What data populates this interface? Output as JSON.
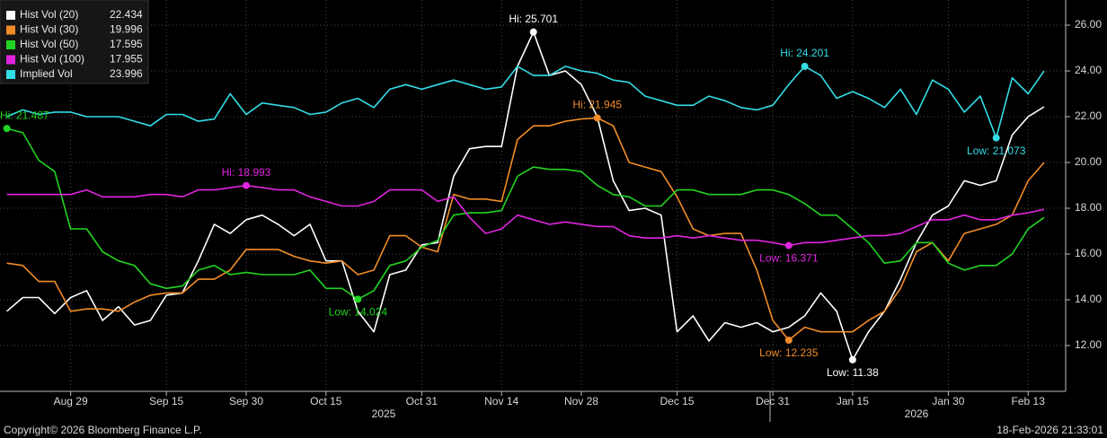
{
  "chart_data": {
    "type": "line",
    "categories": [
      null,
      null,
      null,
      null,
      "Aug 29",
      null,
      null,
      null,
      null,
      null,
      "Sep 15",
      null,
      null,
      null,
      null,
      "Sep 30",
      null,
      null,
      null,
      null,
      "Oct 15",
      null,
      null,
      null,
      null,
      null,
      "Oct 31",
      null,
      null,
      null,
      null,
      "Nov 14",
      null,
      null,
      null,
      null,
      "Nov 28",
      null,
      null,
      null,
      null,
      null,
      "Dec 15",
      null,
      null,
      null,
      null,
      null,
      "Dec 31",
      null,
      null,
      null,
      null,
      "Jan 15",
      null,
      null,
      null,
      null,
      null,
      "Jan 30",
      null,
      null,
      null,
      null,
      "Feb 13",
      null
    ],
    "year_labels": [
      "2025",
      "2026"
    ],
    "series": [
      {
        "name": "Hist Vol (20)",
        "color": "#ffffff",
        "values": [
          13.5,
          14.1,
          14.1,
          13.4,
          14.1,
          14.4,
          13.1,
          13.7,
          12.9,
          13.1,
          14.2,
          14.3,
          15.7,
          17.3,
          16.9,
          17.5,
          17.7,
          17.3,
          16.8,
          17.3,
          15.7,
          15.7,
          13.5,
          12.6,
          15.1,
          15.3,
          16.4,
          16.5,
          19.4,
          20.6,
          20.7,
          20.7,
          24.2,
          25.701,
          23.8,
          24.0,
          23.4,
          22.0,
          19.2,
          17.9,
          18.0,
          17.7,
          12.6,
          13.3,
          12.2,
          13.0,
          12.8,
          13.0,
          12.6,
          12.8,
          13.3,
          14.3,
          13.5,
          11.38,
          12.6,
          13.5,
          14.9,
          16.5,
          17.7,
          18.1,
          19.2,
          19.0,
          19.2,
          21.2,
          22.0,
          22.434
        ],
        "value_labels": [
          null,
          null,
          null,
          null,
          null,
          null,
          null,
          null,
          null,
          null,
          null,
          null,
          null,
          null,
          null,
          null,
          null,
          null,
          null,
          null,
          null,
          null,
          null,
          null,
          null,
          null,
          null,
          null,
          null,
          null,
          null,
          null,
          null,
          "Hi: 25.701",
          null,
          null,
          null,
          null,
          null,
          null,
          null,
          null,
          null,
          null,
          null,
          null,
          null,
          null,
          null,
          null,
          null,
          null,
          null,
          "Low: 11.38",
          null,
          null,
          null,
          null,
          null,
          null,
          null,
          null,
          null,
          null,
          null,
          null
        ]
      },
      {
        "name": "Hist Vol (30)",
        "color": "#f28c28",
        "values": [
          15.6,
          15.5,
          14.8,
          14.8,
          13.5,
          13.6,
          13.6,
          13.5,
          13.9,
          14.2,
          14.3,
          14.3,
          14.9,
          14.9,
          15.3,
          16.2,
          16.2,
          16.2,
          15.9,
          15.7,
          15.6,
          15.7,
          15.1,
          15.3,
          16.8,
          16.8,
          16.3,
          16.1,
          18.6,
          18.4,
          18.4,
          18.3,
          21.0,
          21.6,
          21.6,
          21.8,
          21.9,
          21.945,
          21.6,
          20.0,
          19.8,
          19.6,
          18.5,
          17.1,
          16.8,
          16.9,
          16.9,
          15.3,
          13.1,
          12.235,
          12.8,
          12.6,
          12.6,
          12.6,
          13.1,
          13.5,
          14.5,
          16.1,
          16.5,
          15.7,
          16.9,
          17.1,
          17.3,
          17.7,
          19.2,
          19.996
        ],
        "value_labels": [
          null,
          null,
          null,
          null,
          null,
          null,
          null,
          null,
          null,
          null,
          null,
          null,
          null,
          null,
          null,
          null,
          null,
          null,
          null,
          null,
          null,
          null,
          null,
          null,
          null,
          null,
          null,
          null,
          null,
          null,
          null,
          null,
          null,
          null,
          null,
          null,
          null,
          "Hi: 21.945",
          null,
          null,
          null,
          null,
          null,
          null,
          null,
          null,
          null,
          null,
          null,
          "Low: 12.235",
          null,
          null,
          null,
          null,
          null,
          null,
          null,
          null,
          null,
          null,
          null,
          null,
          null,
          null,
          null,
          null
        ]
      },
      {
        "name": "Hist Vol (50)",
        "color": "#22d422",
        "values": [
          21.487,
          21.3,
          20.1,
          19.6,
          17.1,
          17.1,
          16.1,
          15.7,
          15.5,
          14.7,
          14.5,
          14.6,
          15.3,
          15.5,
          15.1,
          15.2,
          15.1,
          15.1,
          15.1,
          15.3,
          14.5,
          14.5,
          14.024,
          14.4,
          15.5,
          15.7,
          16.3,
          16.6,
          17.7,
          17.8,
          17.8,
          17.9,
          19.4,
          19.8,
          19.7,
          19.7,
          19.6,
          19.0,
          18.6,
          18.5,
          18.1,
          18.1,
          18.8,
          18.8,
          18.6,
          18.6,
          18.6,
          18.8,
          18.8,
          18.6,
          18.2,
          17.7,
          17.7,
          17.1,
          16.5,
          15.6,
          15.7,
          16.5,
          16.5,
          15.6,
          15.3,
          15.5,
          15.5,
          16.0,
          17.1,
          17.595
        ],
        "value_labels": [
          "Hi: 21.487",
          null,
          null,
          null,
          null,
          null,
          null,
          null,
          null,
          null,
          null,
          null,
          null,
          null,
          null,
          null,
          null,
          null,
          null,
          null,
          null,
          null,
          "Low: 14.024",
          null,
          null,
          null,
          null,
          null,
          null,
          null,
          null,
          null,
          null,
          null,
          null,
          null,
          null,
          null,
          null,
          null,
          null,
          null,
          null,
          null,
          null,
          null,
          null,
          null,
          null,
          null,
          null,
          null,
          null,
          null,
          null,
          null,
          null,
          null,
          null,
          null,
          null,
          null,
          null,
          null,
          null,
          null
        ]
      },
      {
        "name": "Hist Vol (100)",
        "color": "#e025e0",
        "values": [
          18.6,
          18.6,
          18.6,
          18.6,
          18.6,
          18.8,
          18.5,
          18.5,
          18.5,
          18.6,
          18.6,
          18.5,
          18.8,
          18.8,
          18.9,
          18.993,
          18.9,
          18.8,
          18.8,
          18.5,
          18.3,
          18.1,
          18.1,
          18.3,
          18.8,
          18.8,
          18.8,
          18.3,
          18.5,
          17.6,
          16.9,
          17.1,
          17.7,
          17.5,
          17.3,
          17.4,
          17.3,
          17.2,
          17.2,
          16.8,
          16.7,
          16.7,
          16.8,
          16.7,
          16.8,
          16.7,
          16.6,
          16.6,
          16.5,
          16.371,
          16.5,
          16.5,
          16.6,
          16.7,
          16.8,
          16.8,
          16.9,
          17.2,
          17.5,
          17.5,
          17.7,
          17.5,
          17.5,
          17.7,
          17.8,
          17.955
        ],
        "value_labels": [
          null,
          null,
          null,
          null,
          null,
          null,
          null,
          null,
          null,
          null,
          null,
          null,
          null,
          null,
          null,
          "Hi: 18.993",
          null,
          null,
          null,
          null,
          null,
          null,
          null,
          null,
          null,
          null,
          null,
          null,
          null,
          null,
          null,
          null,
          null,
          null,
          null,
          null,
          null,
          null,
          null,
          null,
          null,
          null,
          null,
          null,
          null,
          null,
          null,
          null,
          null,
          "Low: 16.371",
          null,
          null,
          null,
          null,
          null,
          null,
          null,
          null,
          null,
          null,
          null,
          null,
          null,
          null,
          null,
          null
        ]
      },
      {
        "name": "Implied Vol",
        "color": "#33dde6",
        "values": [
          22.0,
          22.3,
          22.1,
          22.2,
          22.2,
          22.0,
          22.0,
          22.0,
          21.8,
          21.6,
          22.1,
          22.1,
          21.8,
          21.9,
          23.0,
          22.1,
          22.6,
          22.5,
          22.4,
          22.1,
          22.2,
          22.6,
          22.8,
          22.4,
          23.2,
          23.4,
          23.2,
          23.4,
          23.6,
          23.4,
          23.2,
          23.3,
          24.2,
          23.8,
          23.8,
          24.2,
          24.0,
          23.9,
          23.6,
          23.5,
          22.9,
          22.7,
          22.5,
          22.5,
          22.9,
          22.7,
          22.4,
          22.3,
          22.5,
          23.4,
          24.201,
          23.8,
          22.8,
          23.1,
          22.8,
          22.4,
          23.2,
          22.1,
          23.6,
          23.2,
          22.2,
          22.9,
          21.073,
          23.7,
          23.0,
          23.996
        ],
        "value_labels": [
          null,
          null,
          null,
          null,
          null,
          null,
          null,
          null,
          null,
          null,
          null,
          null,
          null,
          null,
          null,
          null,
          null,
          null,
          null,
          null,
          null,
          null,
          null,
          null,
          null,
          null,
          null,
          null,
          null,
          null,
          null,
          null,
          null,
          null,
          null,
          null,
          null,
          null,
          null,
          null,
          null,
          null,
          null,
          null,
          null,
          null,
          null,
          null,
          null,
          null,
          "Hi: 24.201",
          null,
          null,
          null,
          null,
          null,
          null,
          null,
          null,
          null,
          null,
          null,
          "Low: 21.073",
          null,
          null,
          null
        ]
      }
    ],
    "ylim": [
      10,
      27.1
    ],
    "yticks": [
      {
        "value": 12,
        "label": "12.00"
      },
      {
        "value": 14,
        "label": "14.00"
      },
      {
        "value": 16,
        "label": "16.00"
      },
      {
        "value": 18,
        "label": "18.00"
      },
      {
        "value": 20,
        "label": "20.00"
      },
      {
        "value": 22,
        "label": "22.00"
      },
      {
        "value": 24,
        "label": "24.00"
      },
      {
        "value": 26,
        "label": "26.00"
      }
    ],
    "grid": true
  },
  "footer": {
    "copyright": "Copyright© 2026 Bloomberg Finance L.P.",
    "timestamp": "18-Feb-2026 21:33:01"
  }
}
